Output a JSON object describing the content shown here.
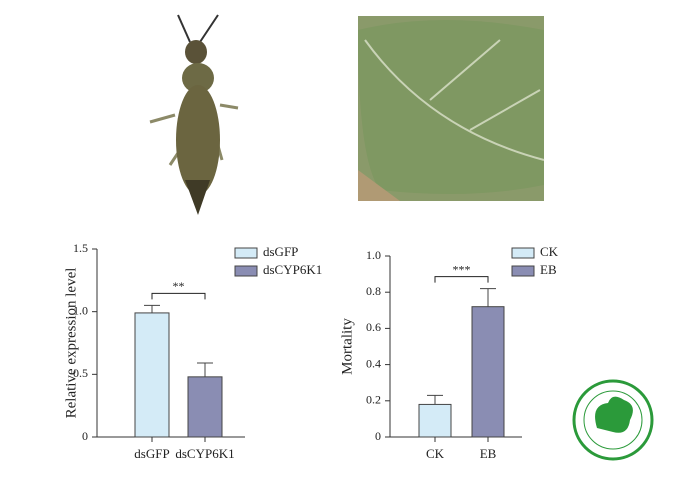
{
  "chart_data": [
    {
      "type": "bar",
      "ylabel": "Relative expression level",
      "categories": [
        "dsGFP",
        "dsCYP6K1"
      ],
      "values": [
        0.99,
        0.48
      ],
      "errors": [
        0.06,
        0.11
      ],
      "colors": [
        "#d4ebf7",
        "#8a8db3"
      ],
      "significance": "**",
      "ylim": [
        0,
        1.5
      ],
      "yticks": [
        0,
        0.5,
        {
          "value": 1,
          "label": "1.0"
        },
        1.5
      ]
    },
    {
      "type": "bar",
      "ylabel": "Mortality",
      "categories": [
        "CK",
        "EB"
      ],
      "values": [
        0.18,
        0.72
      ],
      "errors": [
        0.05,
        0.1
      ],
      "colors": [
        "#d4ebf7",
        "#8a8db3"
      ],
      "significance": "***",
      "ylim": [
        0,
        {
          "value": 1,
          "label": "1.0"
        }
      ],
      "yticks": [
        0,
        0.2,
        0.4,
        0.6,
        0.8,
        {
          "value": 1,
          "label": "1.0"
        }
      ]
    }
  ]
}
